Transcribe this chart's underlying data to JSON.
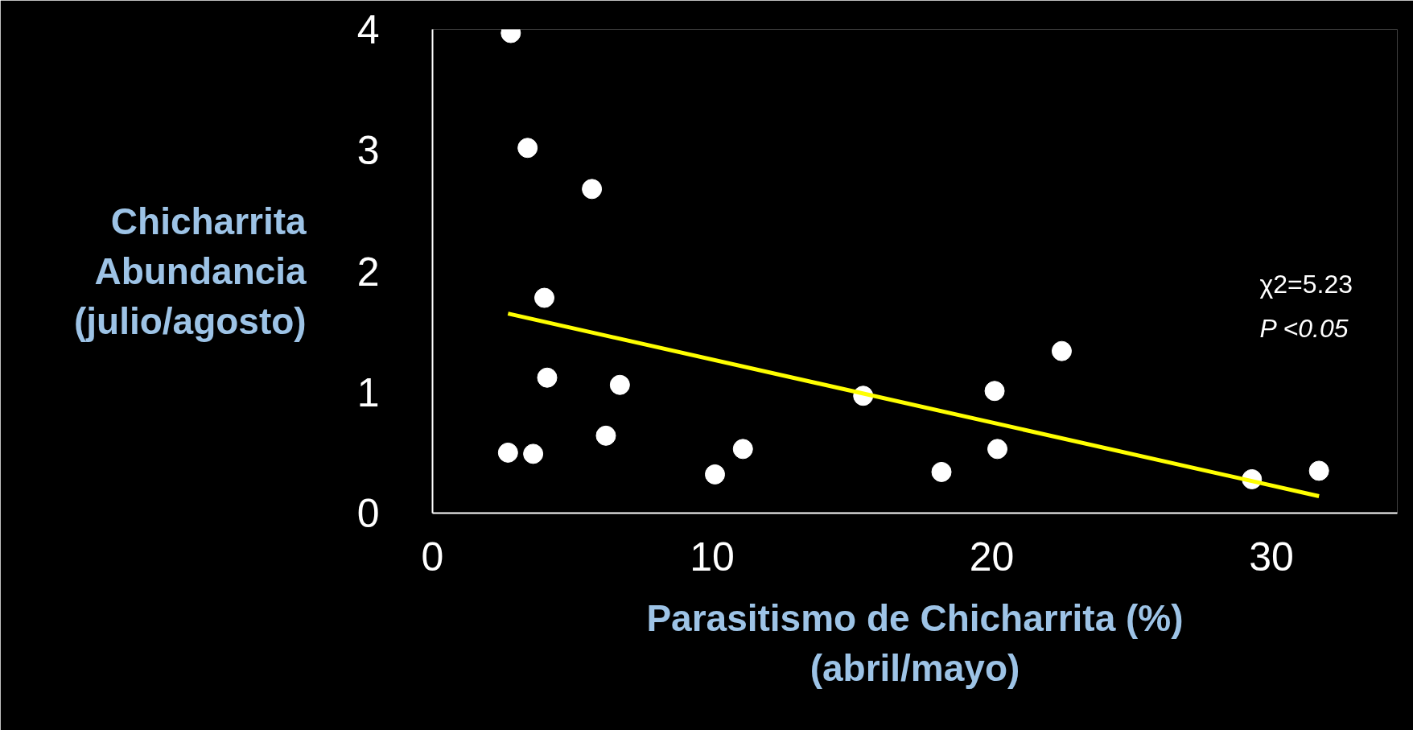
{
  "chart_data": {
    "type": "scatter",
    "xlabel": "Parasitismo de Chicharrita (%)\n(abril/mayo)",
    "ylabel": "Chicharrita\nAbundancia\n(julio/agosto)",
    "xlim": [
      0,
      34.5
    ],
    "xticks": [
      0,
      10,
      20,
      30
    ],
    "ylim": [
      0,
      4
    ],
    "yticks": [
      0,
      1,
      2,
      3,
      4
    ],
    "grid": false,
    "series": [
      {
        "color": "#ffffff",
        "marker": "circle",
        "x": [
          2.8,
          3.4,
          5.7,
          4.0,
          4.1,
          6.7,
          2.7,
          3.6,
          6.2,
          10.1,
          11.1,
          15.4,
          18.2,
          20.1,
          20.2,
          22.5,
          29.3,
          31.7
        ],
        "values": [
          3.97,
          3.02,
          2.68,
          1.78,
          1.12,
          1.06,
          0.5,
          0.49,
          0.64,
          0.32,
          0.53,
          0.97,
          0.34,
          1.01,
          0.53,
          1.34,
          0.28,
          0.35
        ]
      },
      {
        "type": "line",
        "marker": "none",
        "color": "#ffff00",
        "x": [
          2.7,
          31.7
        ],
        "values": [
          1.65,
          0.14
        ]
      }
    ],
    "annotations": [
      "χ2=5.23",
      "P <0.05"
    ]
  }
}
